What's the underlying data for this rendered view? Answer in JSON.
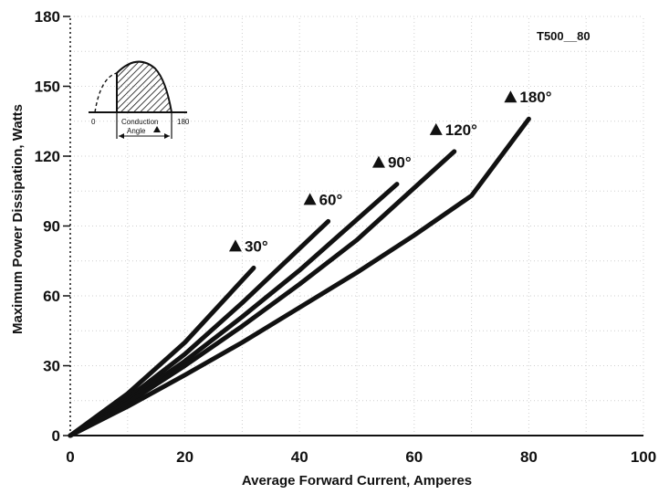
{
  "chart_data": {
    "type": "line",
    "part_number": "T500__80",
    "xlabel": "Average Forward Current, Amperes",
    "ylabel": "Maximum Power Dissipation, Watts",
    "xlim": [
      0,
      100
    ],
    "ylim": [
      0,
      180
    ],
    "x_ticks": [
      "0",
      "20",
      "40",
      "60",
      "80",
      "100"
    ],
    "y_ticks": [
      "0",
      "30",
      "60",
      "90",
      "120",
      "150",
      "180"
    ],
    "grid": true,
    "series": [
      {
        "name": "30°",
        "label_text": "30°",
        "x": [
          0,
          10,
          20,
          32
        ],
        "y": [
          0,
          18,
          40,
          72
        ]
      },
      {
        "name": "60°",
        "label_text": "60°",
        "x": [
          0,
          10,
          20,
          30,
          45
        ],
        "y": [
          0,
          16,
          35,
          57,
          92
        ]
      },
      {
        "name": "90°",
        "label_text": "90°",
        "x": [
          0,
          10,
          20,
          30,
          40,
          57
        ],
        "y": [
          0,
          15,
          32,
          51,
          71,
          108
        ]
      },
      {
        "name": "120°",
        "label_text": "120°",
        "x": [
          0,
          10,
          20,
          30,
          40,
          50,
          67
        ],
        "y": [
          0,
          14,
          30,
          47,
          65,
          84,
          122
        ]
      },
      {
        "name": "180°",
        "label_text": "180°",
        "x": [
          0,
          10,
          20,
          30,
          40,
          50,
          60,
          70,
          80
        ],
        "y": [
          0,
          12.5,
          26,
          40,
          55,
          70,
          86,
          103,
          136
        ]
      }
    ],
    "inset": {
      "left_label": "0",
      "right_label": "180",
      "caption_line1": "Conduction",
      "caption_line2": "Angle"
    }
  }
}
